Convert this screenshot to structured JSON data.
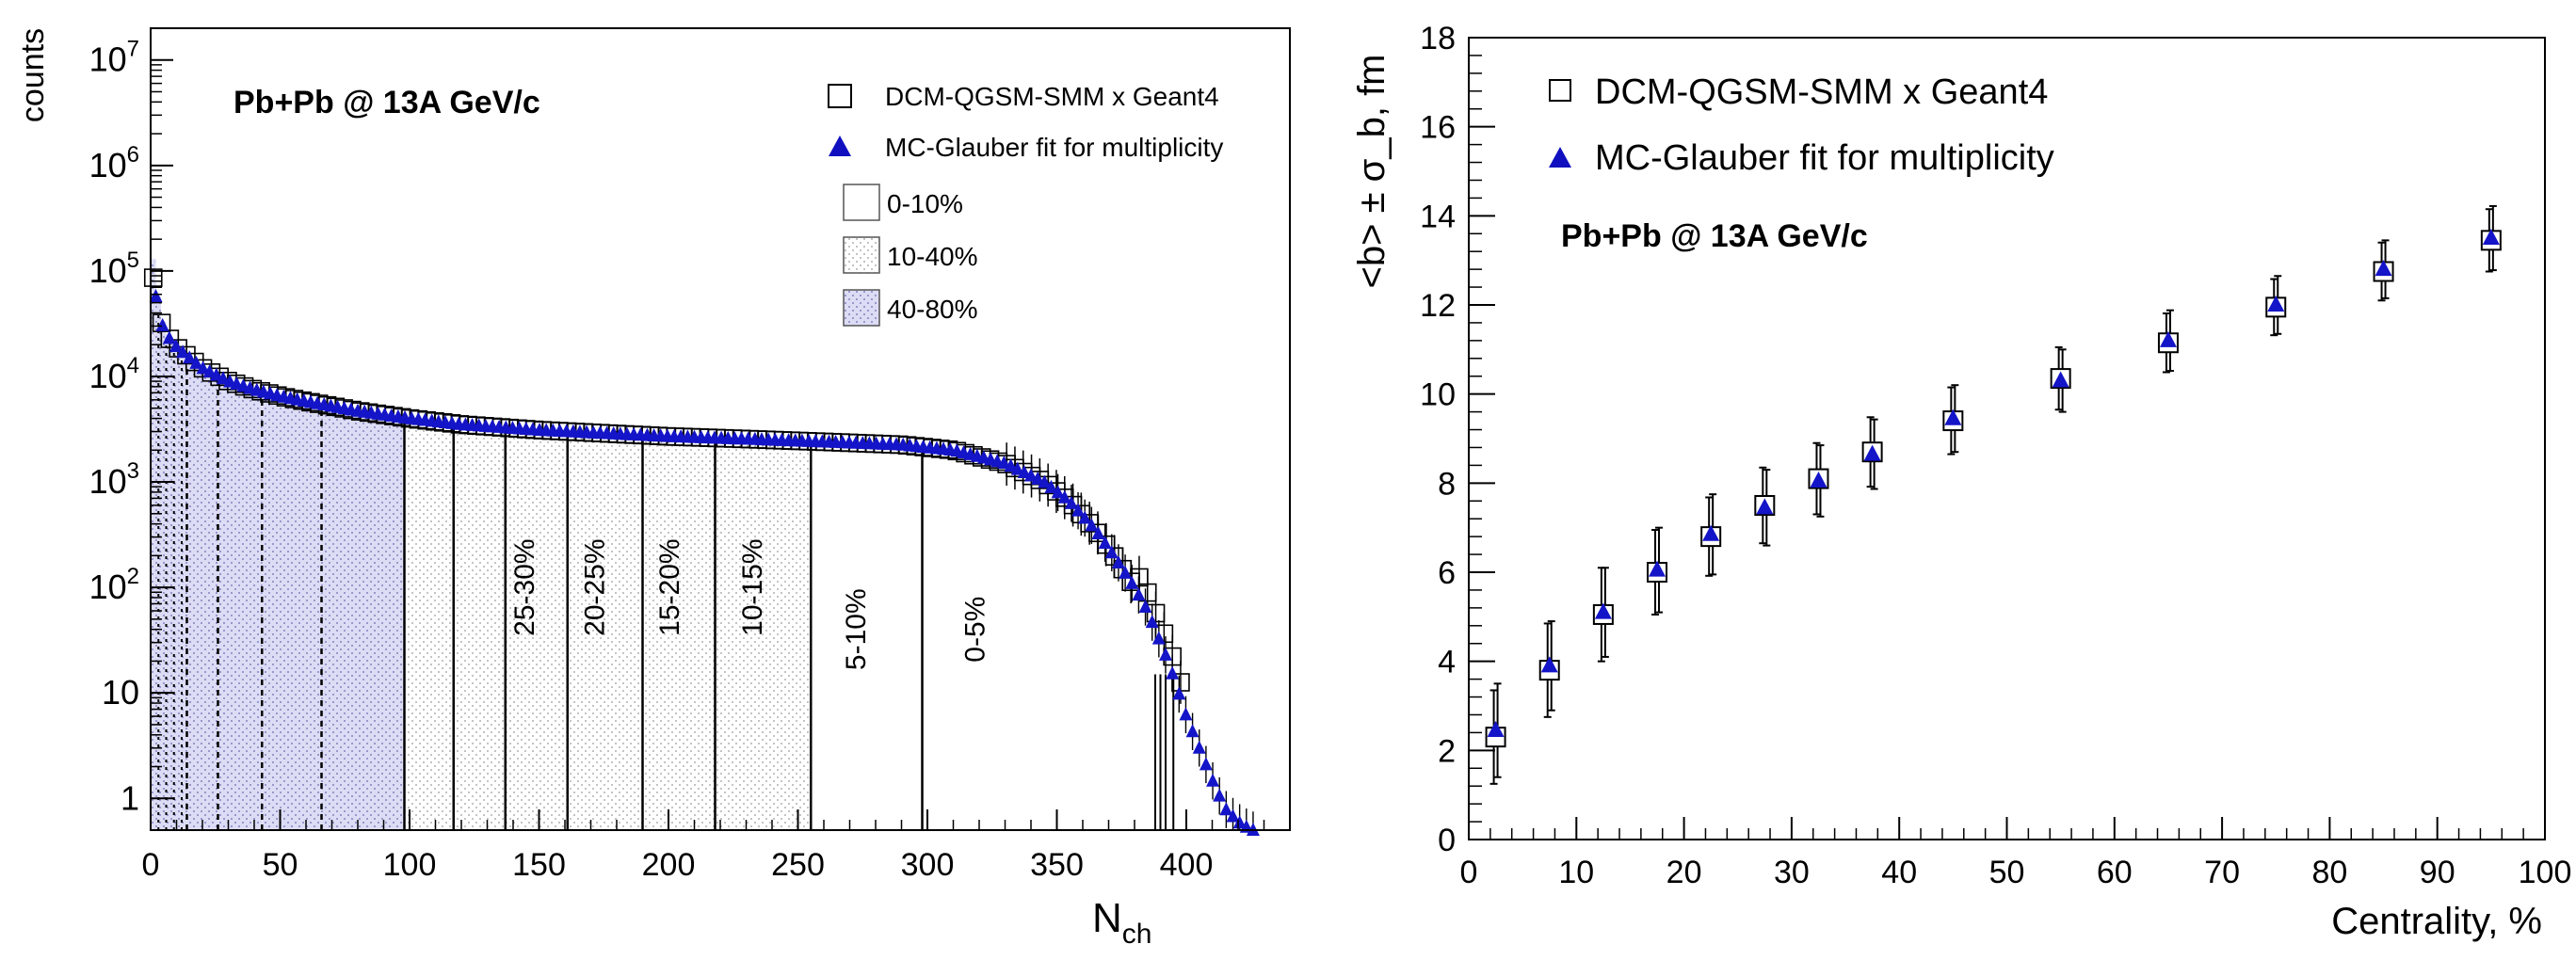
{
  "chart_data": [
    {
      "type": "bar",
      "title": "",
      "annotation": "Pb+Pb @ 13A GeV/c",
      "xlabel": "N",
      "xlabel_sub": "ch",
      "ylabel": "counts",
      "log_y": true,
      "xlim": [
        0,
        440
      ],
      "ylim": [
        0.5,
        20000000
      ],
      "xticks": [
        "0",
        "50",
        "100",
        "150",
        "200",
        "250",
        "300",
        "350",
        "400"
      ],
      "yticks": [
        "1",
        "10",
        "10^2",
        "10^3",
        "10^4",
        "10^5",
        "10^6",
        "10^7"
      ],
      "legend_position": "top-right",
      "legend": [
        {
          "label": "DCM-QGSM-SMM x Geant4",
          "marker": "open-square"
        },
        {
          "label": "MC-Glauber fit for multiplicity",
          "marker": "filled-triangle"
        },
        {
          "label": "0-10%",
          "fill": "none"
        },
        {
          "label": "10-40%",
          "fill": "dotted"
        },
        {
          "label": "40-80%",
          "fill": "blue-dotted"
        }
      ],
      "class_edges": [
        0,
        14,
        26,
        43,
        66,
        98,
        117,
        137,
        161,
        190,
        218,
        255,
        298
      ],
      "class_labels": [
        {
          "label": "25-30%",
          "x": 148,
          "y": 100
        },
        {
          "label": "20-25%",
          "x": 175,
          "y": 100
        },
        {
          "label": "15-20%",
          "x": 204,
          "y": 100
        },
        {
          "label": "10-15%",
          "x": 236,
          "y": 100
        },
        {
          "label": "5-10%",
          "x": 276,
          "y": 40
        },
        {
          "label": "0-5%",
          "x": 322,
          "y": 40
        }
      ],
      "dist_x": [
        0,
        3,
        6,
        10,
        15,
        20,
        30,
        40,
        50,
        60,
        80,
        100,
        120,
        150,
        180,
        200,
        230,
        260,
        290,
        310,
        330,
        345,
        355,
        365,
        372,
        380,
        385,
        390,
        393,
        396,
        400,
        405,
        410,
        415,
        420,
        425,
        430
      ],
      "dist_y": [
        130000,
        38000,
        25000,
        19000,
        15000,
        12000,
        9000,
        7500,
        6500,
        5800,
        4700,
        4000,
        3500,
        3100,
        2850,
        2700,
        2550,
        2400,
        2250,
        2000,
        1500,
        1000,
        650,
        350,
        200,
        100,
        60,
        30,
        20,
        12,
        6,
        3,
        1.5,
        0.8,
        0.6,
        0.5,
        0.5
      ],
      "series": [
        {
          "name": "DCM-QGSM-SMM x Geant4",
          "marker": "open-square"
        },
        {
          "name": "MC-Glauber fit for multiplicity",
          "marker": "filled-triangle"
        }
      ]
    },
    {
      "type": "scatter",
      "title": "",
      "annotation": "Pb+Pb @ 13A GeV/c",
      "xlabel": "Centrality, %",
      "ylabel": "<b> ± σ_b, fm",
      "xlim": [
        0,
        100
      ],
      "ylim": [
        0,
        18
      ],
      "xticks": [
        "0",
        "10",
        "20",
        "30",
        "40",
        "50",
        "60",
        "70",
        "80",
        "90",
        "100"
      ],
      "yticks": [
        "0",
        "2",
        "4",
        "6",
        "8",
        "10",
        "12",
        "14",
        "16",
        "18"
      ],
      "legend_position": "top-left",
      "x": [
        2.5,
        7.5,
        12.5,
        17.5,
        22.5,
        27.5,
        32.5,
        37.5,
        45,
        55,
        65,
        75,
        85,
        95
      ],
      "series": [
        {
          "name": "DCM-QGSM-SMM x Geant4",
          "marker": "open-square",
          "values": [
            2.3,
            3.8,
            5.05,
            6.0,
            6.8,
            7.5,
            8.1,
            8.7,
            9.4,
            10.35,
            11.15,
            11.95,
            12.75,
            13.45
          ],
          "errors": [
            1.05,
            1.05,
            1.05,
            0.95,
            0.88,
            0.85,
            0.8,
            0.78,
            0.75,
            0.7,
            0.66,
            0.63,
            0.65,
            0.7
          ]
        },
        {
          "name": "MC-Glauber fit for multiplicity",
          "marker": "filled-triangle",
          "values": [
            2.45,
            3.9,
            5.1,
            6.05,
            6.85,
            7.45,
            8.05,
            8.65,
            9.45,
            10.3,
            11.2,
            12.0,
            12.8,
            13.5
          ],
          "errors": [
            1.05,
            1.0,
            1.0,
            0.95,
            0.9,
            0.85,
            0.8,
            0.78,
            0.75,
            0.7,
            0.68,
            0.65,
            0.65,
            0.72
          ]
        }
      ]
    }
  ]
}
